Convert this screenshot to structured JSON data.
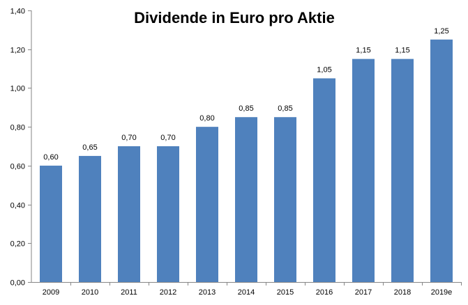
{
  "chart_data": {
    "type": "bar",
    "title": "Dividende in Euro pro Aktie",
    "xlabel": "",
    "ylabel": "",
    "categories": [
      "2009",
      "2010",
      "2011",
      "2012",
      "2013",
      "2014",
      "2015",
      "2016",
      "2017",
      "2018",
      "2019e"
    ],
    "values": [
      0.6,
      0.65,
      0.7,
      0.7,
      0.8,
      0.85,
      0.85,
      1.05,
      1.15,
      1.15,
      1.25
    ],
    "data_labels": [
      "0,60",
      "0,65",
      "0,70",
      "0,70",
      "0,80",
      "0,85",
      "0,85",
      "1,05",
      "1,15",
      "1,15",
      "1,25"
    ],
    "ylim": [
      0,
      1.4
    ],
    "yticks": [
      0,
      0.2,
      0.4,
      0.6,
      0.8,
      1.0,
      1.2,
      1.4
    ],
    "ytick_labels": [
      "0,00",
      "0,20",
      "0,40",
      "0,60",
      "0,80",
      "1,00",
      "1,20",
      "1,40"
    ],
    "grid": false,
    "legend": "none",
    "bar_color": "#4F81BD",
    "axis_color": "#868686"
  }
}
